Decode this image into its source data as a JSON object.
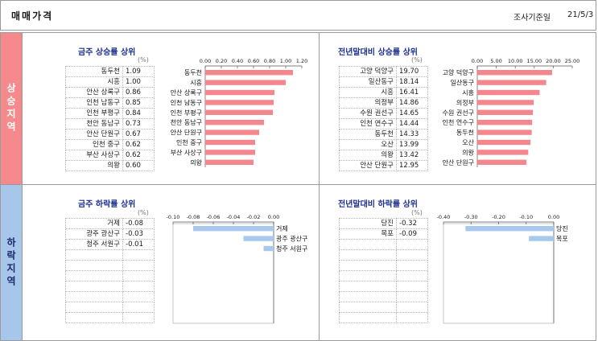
{
  "header": {
    "title": "매매가격",
    "date_label": "조사기준일",
    "date": "21/5/3"
  },
  "sides": {
    "rising": "상승지역",
    "falling": "하락지역"
  },
  "unit": "(%)",
  "colors": {
    "rise_bar": "#f3878d",
    "fall_bar": "#a8c8ee",
    "rise_side": "#f48a8c",
    "fall_side": "#a6c6ea",
    "title": "#1b2f8e"
  },
  "chart_data": [
    {
      "id": "weekly-rise",
      "type": "bar",
      "orientation": "horizontal",
      "title": "금주 상승률 상위",
      "categories": [
        "동두천",
        "시흥",
        "안산 상록구",
        "인천 남동구",
        "인천 부평구",
        "천안 동남구",
        "안산 단원구",
        "인천 중구",
        "부산 사상구",
        "의왕"
      ],
      "values": [
        1.09,
        1.0,
        0.86,
        0.85,
        0.84,
        0.73,
        0.67,
        0.62,
        0.62,
        0.6
      ],
      "xlim": [
        0,
        1.2
      ],
      "ticks": [
        "0.00",
        "0.20",
        "0.40",
        "0.60",
        "0.80",
        "1.00",
        "1.20"
      ]
    },
    {
      "id": "yoy-rise",
      "type": "bar",
      "orientation": "horizontal",
      "title": "전년말대비 상승률 상위",
      "categories": [
        "고양 덕양구",
        "일산동구",
        "시흥",
        "의정부",
        "수원 권선구",
        "인천 연수구",
        "동두천",
        "오산",
        "의왕",
        "안산 단원구"
      ],
      "values": [
        19.7,
        18.14,
        16.41,
        14.86,
        14.65,
        14.44,
        14.33,
        13.99,
        13.42,
        12.95
      ],
      "xlim": [
        0,
        25
      ],
      "ticks": [
        "0.00",
        "5.00",
        "10.00",
        "15.00",
        "20.00",
        "25.00"
      ]
    },
    {
      "id": "weekly-fall",
      "type": "bar",
      "orientation": "horizontal",
      "title": "금주 하락률 상위",
      "categories": [
        "거제",
        "광주 광산구",
        "청주 서원구"
      ],
      "values": [
        -0.08,
        -0.03,
        -0.01
      ],
      "xlim": [
        -0.1,
        0
      ],
      "ticks": [
        "-0.10",
        "-0.08",
        "-0.06",
        "-0.04",
        "-0.02",
        "0.00"
      ]
    },
    {
      "id": "yoy-fall",
      "type": "bar",
      "orientation": "horizontal",
      "title": "전년말대비 하락률 상위",
      "categories": [
        "당진",
        "목포"
      ],
      "values": [
        -0.32,
        -0.09
      ],
      "xlim": [
        -0.4,
        0
      ],
      "ticks": [
        "-0.40",
        "-0.30",
        "-0.20",
        "-0.10",
        "0.00"
      ]
    }
  ]
}
